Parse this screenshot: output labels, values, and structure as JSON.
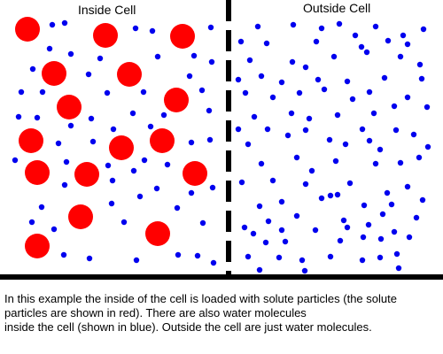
{
  "labels": {
    "inside": "Inside Cell",
    "outside": "Outside Cell"
  },
  "caption": {
    "line1": "In this example the inside of the cell is loaded with solute particles (the solute",
    "line2": "particles are shown in red). There are also water molecules",
    "line3": "inside the cell (shown in blue). Outside the cell are just water molecules."
  },
  "colors": {
    "solute": "#ff0000",
    "water": "#0000ee",
    "membrane": "#000000"
  },
  "legend": {
    "solute_particle": "red",
    "water_molecule": "blue"
  }
}
